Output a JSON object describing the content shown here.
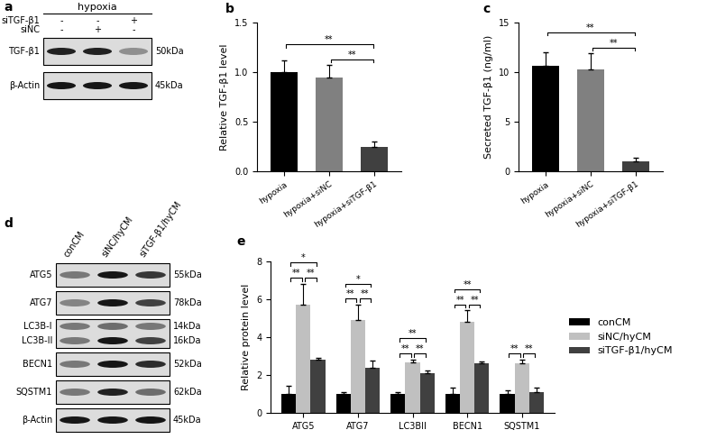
{
  "blots": [
    {
      "panel": "a",
      "header": "hypoxia",
      "conditions": [
        {
          "name": "siTGF-β1",
          "signs": [
            "-",
            "-",
            "+"
          ]
        },
        {
          "name": "siNC",
          "signs": [
            "-",
            "+",
            "-"
          ]
        }
      ],
      "rows": [
        {
          "labels": [
            "TGF-β1"
          ],
          "sizes": [
            "50kDa"
          ],
          "bands": [
            [
              0.85,
              0.85,
              0.35
            ]
          ]
        },
        {
          "labels": [
            "β-Actin"
          ],
          "sizes": [
            "45kDa"
          ],
          "bands": [
            [
              0.9,
              0.9,
              0.9
            ]
          ]
        }
      ]
    },
    {
      "panel": "d",
      "lanes": [
        "conCM",
        "siNC/hyCM",
        "siTGF-β1/hyCM"
      ],
      "rows": [
        {
          "labels": [
            "ATG5"
          ],
          "sizes": [
            "55kDa"
          ],
          "bands": [
            [
              0.45,
              0.9,
              0.75
            ]
          ]
        },
        {
          "labels": [
            "ATG7"
          ],
          "sizes": [
            "78kDa"
          ],
          "bands": [
            [
              0.4,
              0.9,
              0.7
            ]
          ]
        },
        {
          "labels": [
            "LC3B-I",
            "LC3B-II"
          ],
          "sizes": [
            "14kDa",
            "16kDa"
          ],
          "bands": [
            [
              0.45,
              0.5,
              0.45
            ],
            [
              0.45,
              0.9,
              0.7
            ]
          ]
        },
        {
          "labels": [
            "BECN1"
          ],
          "sizes": [
            "52kDa"
          ],
          "bands": [
            [
              0.45,
              0.9,
              0.8
            ]
          ]
        },
        {
          "labels": [
            "SQSTM1"
          ],
          "sizes": [
            "62kDa"
          ],
          "bands": [
            [
              0.45,
              0.85,
              0.5
            ]
          ]
        },
        {
          "labels": [
            "β-Actin"
          ],
          "sizes": [
            "45kDa"
          ],
          "bands": [
            [
              0.9,
              0.9,
              0.9
            ]
          ]
        }
      ]
    }
  ],
  "chart_data": [
    {
      "type": "bar",
      "panel": "b",
      "categories": [
        "hypoxia",
        "hypoxia+siNC",
        "hypoxia+siTGF-β1"
      ],
      "values": [
        1.0,
        0.95,
        0.25
      ],
      "errors": [
        0.12,
        0.12,
        0.05
      ],
      "colors": [
        "#000000",
        "#808080",
        "#404040"
      ],
      "y_label": "Relative TGF-β1 level",
      "ylim": [
        0,
        1.5
      ],
      "yticks": [
        {
          "value": 0,
          "label": "0.0"
        },
        {
          "value": 0.5,
          "label": "0.5"
        },
        {
          "value": 1.0,
          "label": "1.0"
        },
        {
          "value": 1.5,
          "label": "1.5"
        }
      ],
      "significance": [
        {
          "pair": [
            0,
            2
          ],
          "text": "**"
        },
        {
          "pair": [
            1,
            2
          ],
          "text": "**"
        }
      ]
    },
    {
      "type": "bar",
      "panel": "c",
      "categories": [
        "hypoxia",
        "hypoxia+siNC",
        "hypoxia+siTGF-β1"
      ],
      "values": [
        10.6,
        10.3,
        1.0
      ],
      "errors": [
        1.4,
        1.6,
        0.4
      ],
      "colors": [
        "#000000",
        "#808080",
        "#404040"
      ],
      "y_label": "Secreted TGF-β1 (ng/ml)",
      "ylim": [
        0,
        15
      ],
      "yticks": [
        0,
        5,
        10,
        15
      ],
      "significance": [
        {
          "pair": [
            0,
            2
          ],
          "text": "**"
        },
        {
          "pair": [
            1,
            2
          ],
          "text": "**"
        }
      ]
    },
    {
      "type": "bar",
      "panel": "e",
      "categories": [
        "ATG5",
        "ATG7",
        "LC3BII",
        "BECN1",
        "SQSTM1"
      ],
      "series": [
        {
          "name": "conCM",
          "color": "#000000",
          "values": [
            1.0,
            1.0,
            1.0,
            1.0,
            1.0
          ],
          "errors": [
            0.4,
            0.1,
            0.1,
            0.3,
            0.2
          ]
        },
        {
          "name": "siNC/hyCM",
          "color": "#c0c0c0",
          "values": [
            5.7,
            4.9,
            2.65,
            4.8,
            2.6
          ],
          "errors": [
            1.1,
            0.8,
            0.15,
            0.6,
            0.2
          ]
        },
        {
          "name": "siTGF-β1/hyCM",
          "color": "#404040",
          "values": [
            2.8,
            2.35,
            2.1,
            2.6,
            1.1
          ],
          "errors": [
            0.1,
            0.4,
            0.15,
            0.1,
            0.2
          ]
        }
      ],
      "y_label": "Relative protein level",
      "ylim": [
        0,
        8
      ],
      "yticks": [
        0,
        2,
        4,
        6,
        8
      ],
      "legend": "center left",
      "significance": [
        {
          "group": 0,
          "pair": [
            0,
            1
          ],
          "text": "**"
        },
        {
          "group": 0,
          "pair": [
            1,
            2
          ],
          "text": "**"
        },
        {
          "group": 0,
          "pair": [
            0,
            2
          ],
          "text": "*"
        },
        {
          "group": 1,
          "pair": [
            0,
            1
          ],
          "text": "**"
        },
        {
          "group": 1,
          "pair": [
            1,
            2
          ],
          "text": "**"
        },
        {
          "group": 1,
          "pair": [
            0,
            2
          ],
          "text": "*"
        },
        {
          "group": 2,
          "pair": [
            0,
            1
          ],
          "text": "**"
        },
        {
          "group": 2,
          "pair": [
            1,
            2
          ],
          "text": "**"
        },
        {
          "group": 2,
          "pair": [
            0,
            2
          ],
          "text": "**"
        },
        {
          "group": 3,
          "pair": [
            0,
            1
          ],
          "text": "**"
        },
        {
          "group": 3,
          "pair": [
            1,
            2
          ],
          "text": "**"
        },
        {
          "group": 3,
          "pair": [
            0,
            2
          ],
          "text": "**"
        },
        {
          "group": 4,
          "pair": [
            0,
            1
          ],
          "text": "**"
        },
        {
          "group": 4,
          "pair": [
            1,
            2
          ],
          "text": "**"
        }
      ]
    }
  ]
}
